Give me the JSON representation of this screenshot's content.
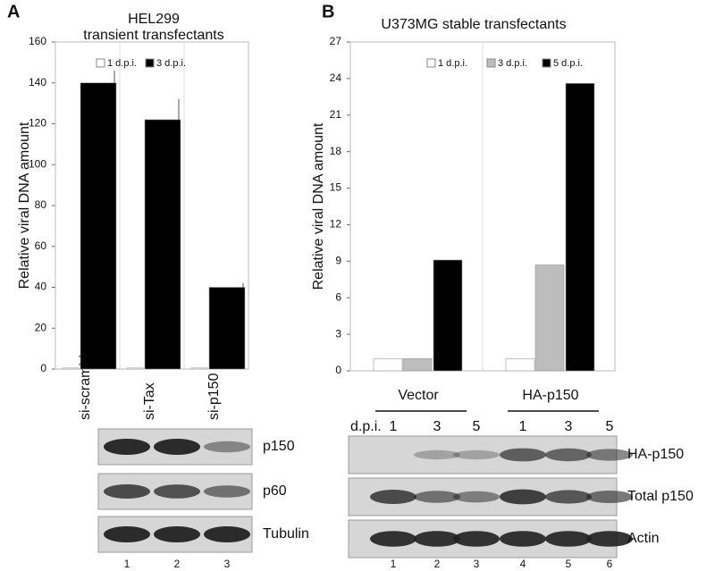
{
  "chart_data": [
    {
      "type": "bar",
      "title": "HEL299",
      "subtitle": "transient transfectants",
      "y_label": "Relative viral DNA amount",
      "categories": [
        "si-scramble",
        "si-Tax",
        "si-p150"
      ],
      "series": [
        {
          "name": "1 d.p.i.",
          "color": "#ffffff",
          "values": [
            0.5,
            0.5,
            0.5
          ]
        },
        {
          "name": "3 d.p.i.",
          "color": "#000000",
          "values": [
            140,
            122,
            40
          ],
          "errors": [
            6,
            10,
            2
          ]
        }
      ],
      "ylim": [
        0,
        160
      ],
      "yticks": [
        0,
        20,
        40,
        60,
        80,
        100,
        120,
        140,
        160
      ],
      "legend": "top"
    },
    {
      "type": "bar",
      "title": "U373MG stable transfectants",
      "y_label": "Relative viral DNA amount",
      "categories": [
        "Vector",
        "HA-p150"
      ],
      "series": [
        {
          "name": "1 d.p.i.",
          "color": "#ffffff",
          "values": [
            1,
            1
          ]
        },
        {
          "name": "3 d.p.i.",
          "color": "#bdbdbd",
          "values": [
            1,
            8.7
          ]
        },
        {
          "name": "5 d.p.i.",
          "color": "#000000",
          "values": [
            9.1,
            23.6
          ]
        }
      ],
      "ylim": [
        0,
        27
      ],
      "yticks": [
        0,
        3,
        6,
        9,
        12,
        15,
        18,
        21,
        24,
        27
      ],
      "legend": "top"
    }
  ],
  "panel_labels": [
    "A",
    "B"
  ],
  "blot_a": {
    "bands": [
      "p150",
      "p60",
      "Tubulin"
    ],
    "lanes": [
      "1",
      "2",
      "3"
    ]
  },
  "blot_b": {
    "dpi_label": "d.p.i.",
    "dpi": [
      "1",
      "3",
      "5",
      "1",
      "3",
      "5"
    ],
    "bands": [
      "HA-p150",
      "Total p150",
      "Actin"
    ],
    "lanes": [
      "1",
      "2",
      "3",
      "4",
      "5",
      "6"
    ]
  }
}
